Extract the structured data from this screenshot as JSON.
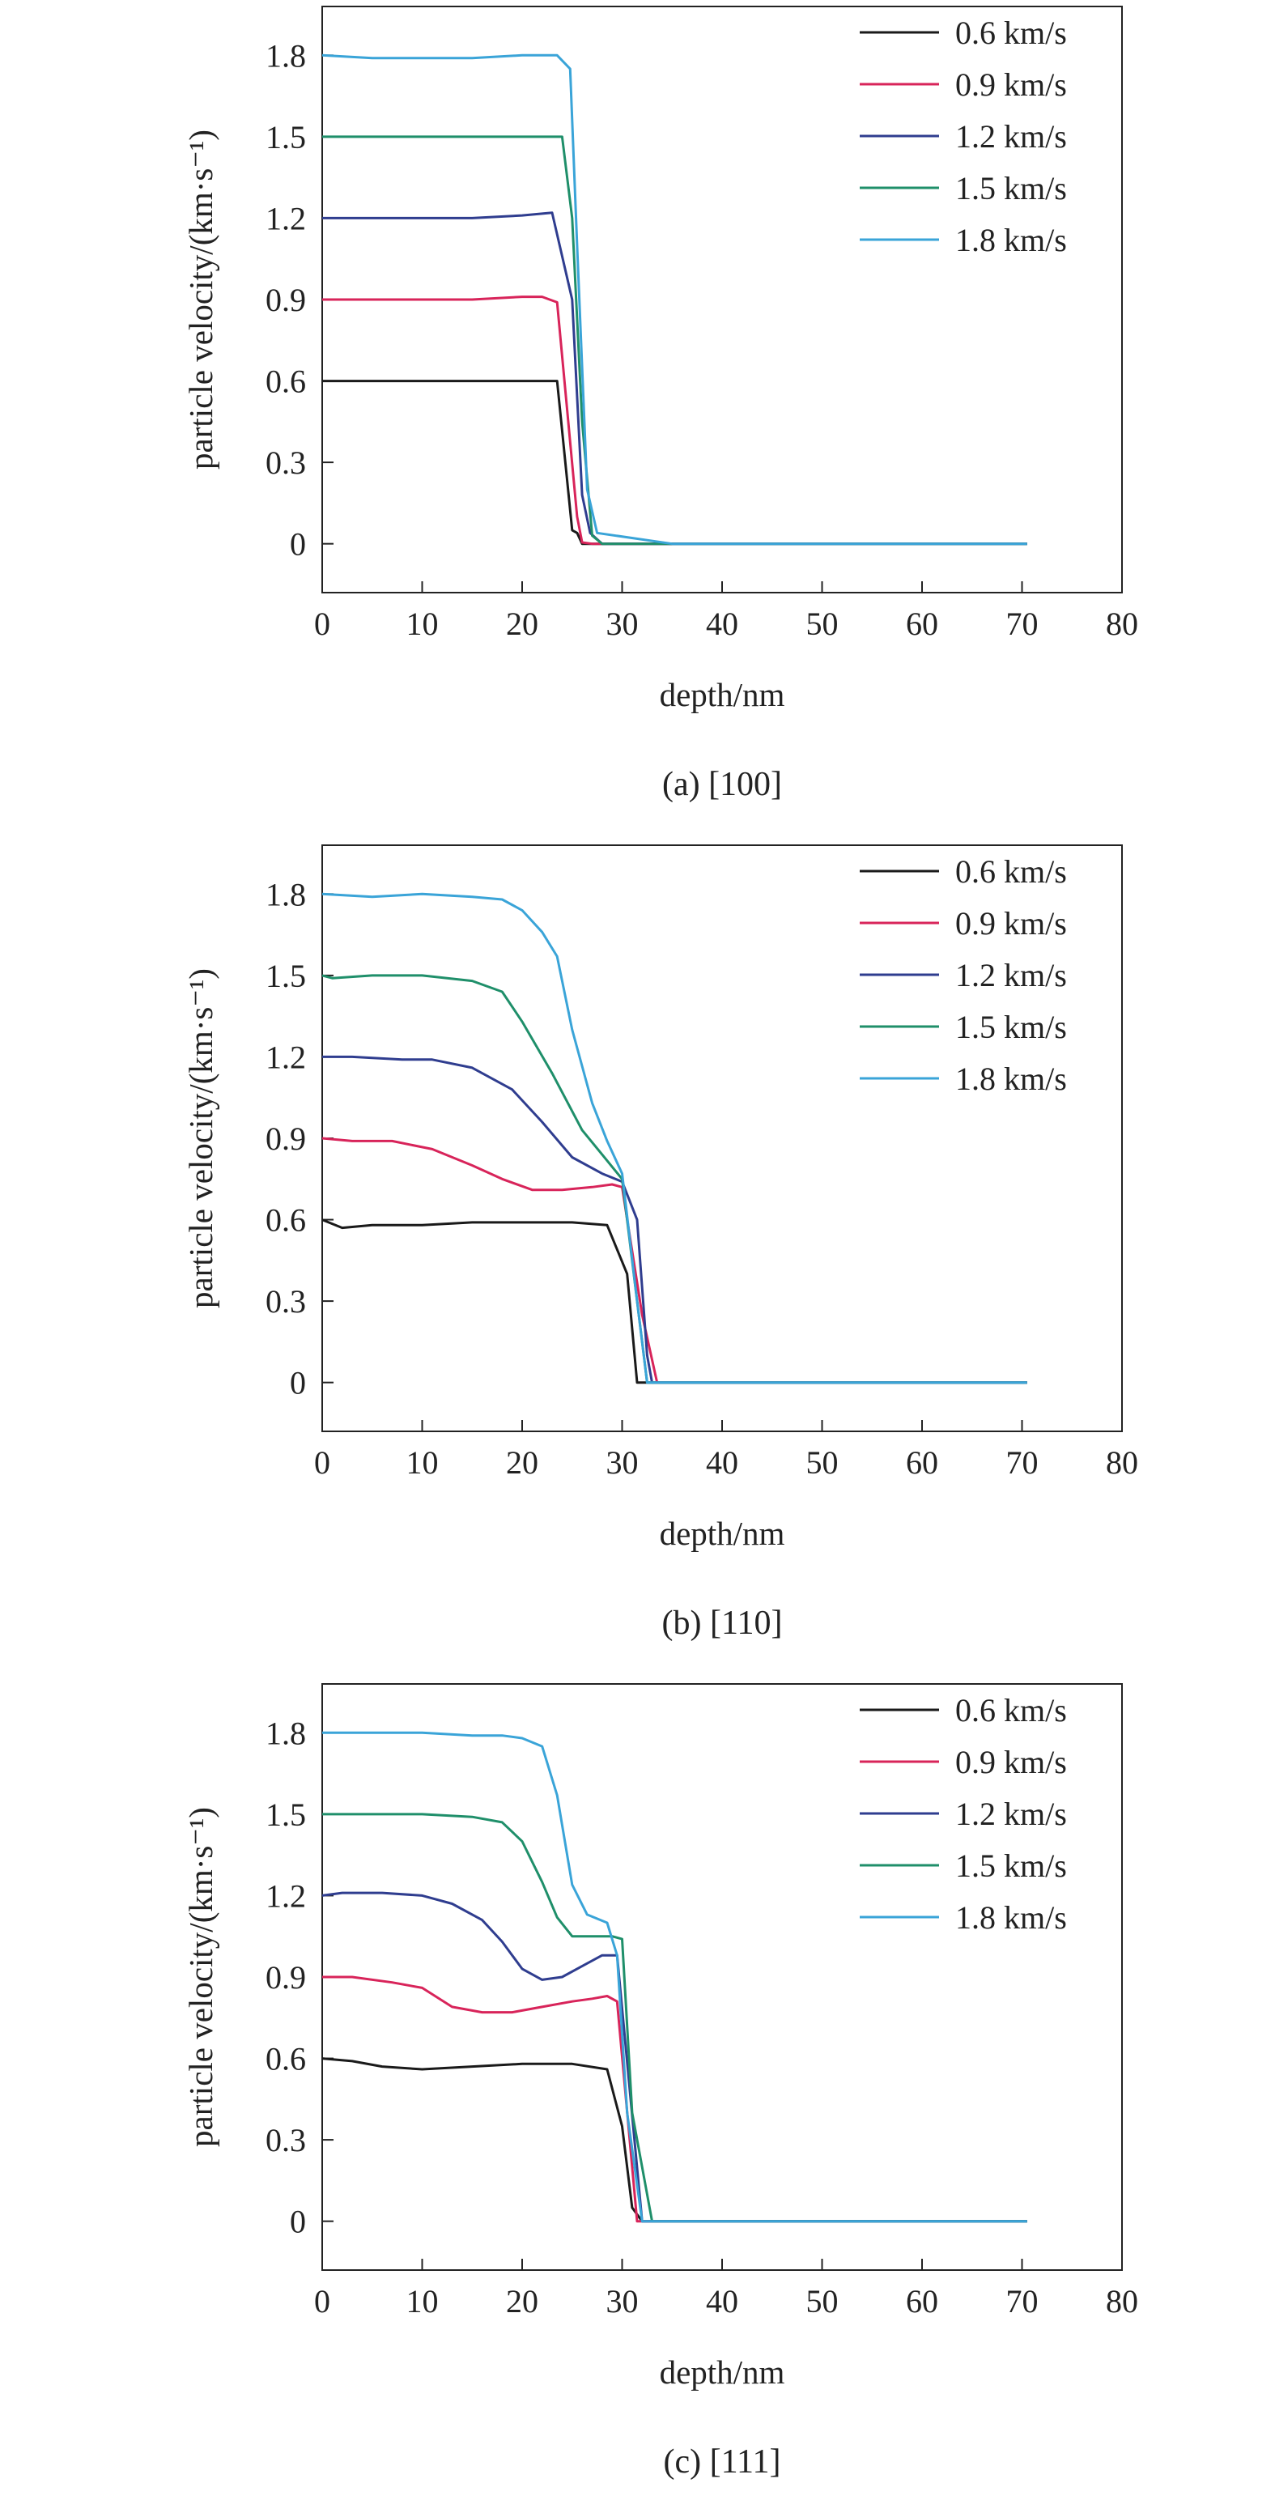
{
  "colors": {
    "0.6 km/s": "#1a1a1a",
    "0.9 km/s": "#d8245a",
    "1.2 km/s": "#2f3d8f",
    "1.5 km/s": "#1f8f6a",
    "1.8 km/s": "#3aa4d8",
    "frame": "#222222"
  },
  "chart_data": [
    {
      "type": "line",
      "caption": "(a) [100]",
      "xlabel": "depth/nm",
      "ylabel": "particle velocity/(km·s⁻¹)",
      "xlim": [
        0,
        80
      ],
      "ylim": [
        -0.18,
        1.98
      ],
      "xticks": [
        "0",
        "10",
        "20",
        "30",
        "40",
        "50",
        "60",
        "70",
        "80"
      ],
      "yticks": [
        "0",
        "0.3",
        "0.6",
        "0.9",
        "1.2",
        "1.5",
        "1.8"
      ],
      "legend_position": "top-right",
      "series": [
        {
          "name": "0.6 km/s",
          "x": [
            0,
            5,
            10,
            15,
            20,
            23.5,
            25,
            25.5,
            26,
            28,
            35,
            45,
            55,
            65,
            70.5
          ],
          "y": [
            0.6,
            0.6,
            0.6,
            0.6,
            0.6,
            0.6,
            0.05,
            0.04,
            0,
            0,
            0,
            0,
            0,
            0,
            0
          ]
        },
        {
          "name": "0.9 km/s",
          "x": [
            0,
            5,
            10,
            15,
            20,
            22,
            23.5,
            25.5,
            26,
            27,
            35,
            45,
            55,
            65,
            70.5
          ],
          "y": [
            0.9,
            0.9,
            0.9,
            0.9,
            0.91,
            0.91,
            0.89,
            0.1,
            0.005,
            0,
            0,
            0,
            0,
            0,
            0
          ]
        },
        {
          "name": "1.2 km/s",
          "x": [
            0,
            5,
            10,
            15,
            20,
            23,
            25,
            26,
            26.8,
            28,
            35,
            45,
            55,
            65,
            70.5
          ],
          "y": [
            1.2,
            1.2,
            1.2,
            1.2,
            1.21,
            1.22,
            0.9,
            0.18,
            0.04,
            0,
            0,
            0,
            0,
            0,
            0
          ]
        },
        {
          "name": "1.5 km/s",
          "x": [
            0,
            5,
            10,
            15,
            20,
            24,
            25,
            26,
            27,
            28,
            35,
            45,
            55,
            65,
            70.5
          ],
          "y": [
            1.5,
            1.5,
            1.5,
            1.5,
            1.5,
            1.5,
            1.2,
            0.45,
            0.03,
            0,
            0,
            0,
            0,
            0,
            0
          ]
        },
        {
          "name": "1.8 km/s",
          "x": [
            0,
            5,
            10,
            15,
            20,
            23.5,
            24.8,
            25.5,
            26.5,
            27.5,
            35,
            45,
            55,
            65,
            70.5
          ],
          "y": [
            1.8,
            1.79,
            1.79,
            1.79,
            1.8,
            1.8,
            1.75,
            1.1,
            0.2,
            0.04,
            0,
            0,
            0,
            0,
            0
          ]
        }
      ]
    },
    {
      "type": "line",
      "caption": "(b) [110]",
      "xlabel": "depth/nm",
      "ylabel": "particle velocity/(km·s⁻¹)",
      "xlim": [
        0,
        80
      ],
      "ylim": [
        -0.18,
        1.98
      ],
      "xticks": [
        "0",
        "10",
        "20",
        "30",
        "40",
        "50",
        "60",
        "70",
        "80"
      ],
      "yticks": [
        "0",
        "0.3",
        "0.6",
        "0.9",
        "1.2",
        "1.5",
        "1.8"
      ],
      "legend_position": "top-right",
      "series": [
        {
          "name": "0.6 km/s",
          "x": [
            0,
            2,
            5,
            10,
            15,
            20,
            25,
            28.5,
            30.5,
            31.5,
            33,
            40,
            50,
            60,
            70.5
          ],
          "y": [
            0.6,
            0.57,
            0.58,
            0.58,
            0.59,
            0.59,
            0.59,
            0.58,
            0.4,
            0,
            0,
            0,
            0,
            0,
            0
          ]
        },
        {
          "name": "0.9 km/s",
          "x": [
            0,
            3,
            7,
            11,
            15,
            18,
            21,
            24,
            27,
            29,
            30,
            32,
            33.5,
            45,
            70.5
          ],
          "y": [
            0.9,
            0.89,
            0.89,
            0.86,
            0.8,
            0.75,
            0.71,
            0.71,
            0.72,
            0.73,
            0.72,
            0.25,
            0,
            0,
            0
          ]
        },
        {
          "name": "1.2 km/s",
          "x": [
            0,
            3,
            8,
            11,
            15,
            19,
            22,
            25,
            28,
            30,
            31.5,
            32.5,
            33,
            45,
            70.5
          ],
          "y": [
            1.2,
            1.2,
            1.19,
            1.19,
            1.16,
            1.08,
            0.96,
            0.83,
            0.77,
            0.74,
            0.6,
            0.1,
            0,
            0,
            0
          ]
        },
        {
          "name": "1.5 km/s",
          "x": [
            0,
            1,
            5,
            10,
            15,
            18,
            20,
            23,
            26,
            28,
            30,
            31.5,
            32.5,
            45,
            70.5
          ],
          "y": [
            1.5,
            1.49,
            1.5,
            1.5,
            1.48,
            1.44,
            1.33,
            1.14,
            0.93,
            0.84,
            0.75,
            0.3,
            0,
            0,
            0
          ]
        },
        {
          "name": "1.8 km/s",
          "x": [
            0,
            5,
            10,
            15,
            18,
            20,
            22,
            23.5,
            25,
            27,
            28.5,
            30,
            31.5,
            32.5,
            70.5
          ],
          "y": [
            1.8,
            1.79,
            1.8,
            1.79,
            1.78,
            1.74,
            1.66,
            1.57,
            1.3,
            1.03,
            0.89,
            0.77,
            0.3,
            0,
            0
          ]
        }
      ]
    },
    {
      "type": "line",
      "caption": "(c) [111]",
      "xlabel": "depth/nm",
      "ylabel": "particle velocity/(km·s⁻¹)",
      "xlim": [
        0,
        80
      ],
      "ylim": [
        -0.18,
        1.98
      ],
      "xticks": [
        "0",
        "10",
        "20",
        "30",
        "40",
        "50",
        "60",
        "70",
        "80"
      ],
      "yticks": [
        "0",
        "0.3",
        "0.6",
        "0.9",
        "1.2",
        "1.5",
        "1.8"
      ],
      "legend_position": "top-right",
      "series": [
        {
          "name": "0.6 km/s",
          "x": [
            0,
            3,
            6,
            10,
            15,
            20,
            25,
            28.5,
            30,
            31,
            32,
            40,
            50,
            60,
            70.5
          ],
          "y": [
            0.6,
            0.59,
            0.57,
            0.56,
            0.57,
            0.58,
            0.58,
            0.56,
            0.35,
            0.05,
            0,
            0,
            0,
            0,
            0
          ]
        },
        {
          "name": "0.9 km/s",
          "x": [
            0,
            3,
            7,
            10,
            13,
            16,
            19,
            22,
            25,
            27,
            28.5,
            29.5,
            31.5,
            45,
            70.5
          ],
          "y": [
            0.9,
            0.9,
            0.88,
            0.86,
            0.79,
            0.77,
            0.77,
            0.79,
            0.81,
            0.82,
            0.83,
            0.81,
            0,
            0,
            0
          ]
        },
        {
          "name": "1.2 km/s",
          "x": [
            0,
            2,
            6,
            10,
            13,
            16,
            18,
            20,
            22,
            24,
            26,
            28,
            29.5,
            32,
            70.5
          ],
          "y": [
            1.2,
            1.21,
            1.21,
            1.2,
            1.17,
            1.11,
            1.03,
            0.93,
            0.89,
            0.9,
            0.94,
            0.98,
            0.98,
            0,
            0
          ]
        },
        {
          "name": "1.5 km/s",
          "x": [
            0,
            5,
            10,
            15,
            18,
            20,
            22,
            23.5,
            25,
            27,
            29,
            30,
            31,
            33,
            70.5
          ],
          "y": [
            1.5,
            1.5,
            1.5,
            1.49,
            1.47,
            1.4,
            1.25,
            1.12,
            1.05,
            1.05,
            1.05,
            1.04,
            0.4,
            0,
            0
          ]
        },
        {
          "name": "1.8 km/s",
          "x": [
            0,
            5,
            10,
            15,
            18,
            20,
            22,
            23.5,
            25,
            26.5,
            28.5,
            29.5,
            30.5,
            32,
            70.5
          ],
          "y": [
            1.8,
            1.8,
            1.8,
            1.79,
            1.79,
            1.78,
            1.75,
            1.57,
            1.24,
            1.13,
            1.1,
            0.98,
            0.4,
            0,
            0
          ]
        }
      ]
    }
  ]
}
